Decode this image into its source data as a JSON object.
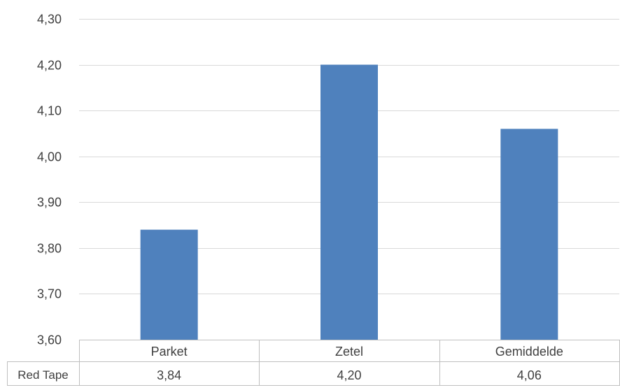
{
  "chart_data": {
    "type": "bar",
    "title": "",
    "xlabel": "",
    "ylabel": "",
    "categories": [
      "Parket",
      "Zetel",
      "Gemiddelde"
    ],
    "series": [
      {
        "name": "Red Tape",
        "values": [
          3.84,
          4.2,
          4.06
        ],
        "value_labels": [
          "3,84",
          "4,20",
          "4,06"
        ]
      }
    ],
    "ylim": [
      3.6,
      4.3
    ],
    "yticks": [
      3.6,
      3.7,
      3.8,
      3.9,
      4.0,
      4.1,
      4.2,
      4.3
    ],
    "ytick_labels": [
      "3,60",
      "3,70",
      "3,80",
      "3,90",
      "4,00",
      "4,10",
      "4,20",
      "4,30"
    ],
    "grid": true,
    "legend": "data-table",
    "colors": {
      "bar": "#4F81BD",
      "grid": "#D9D9D9",
      "text": "#404040",
      "table_border": "#BFBFBF"
    }
  }
}
